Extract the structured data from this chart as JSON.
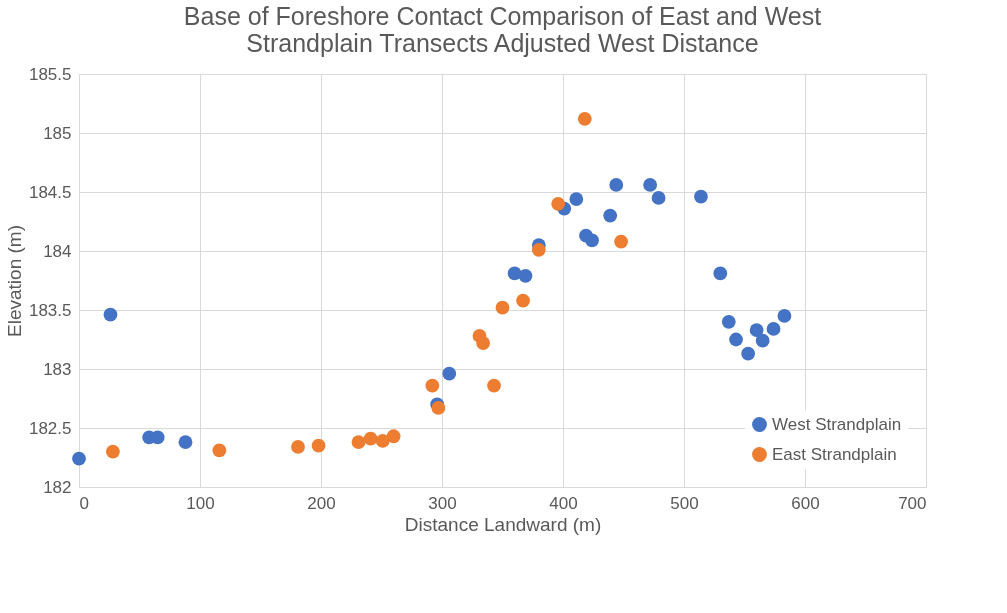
{
  "chart_data": {
    "type": "scatter",
    "title": [
      "Base of Foreshore Contact Comparison of East and West",
      "Strandplain Transects Adjusted West Distance"
    ],
    "xlabel": "Distance Landward (m)",
    "ylabel": "Elevation (m)",
    "xlim": [
      0,
      700
    ],
    "xticks": [
      0,
      100,
      200,
      300,
      400,
      500,
      600,
      700
    ],
    "ylim": [
      182,
      185.5
    ],
    "yticks": [
      182,
      {
        "value": 182.5,
        "label": "182.5"
      },
      183,
      {
        "value": 183.5,
        "label": "183.5"
      },
      184,
      {
        "value": 184.5,
        "label": "184.5"
      },
      185,
      {
        "value": 185.5,
        "label": "185.5"
      }
    ],
    "grid": true,
    "legend": "bottom right",
    "marker": "circle",
    "series": [
      {
        "name": "West Strandplain",
        "color": "#4472c4",
        "x": [
          0,
          26,
          58,
          65,
          88,
          296,
          306,
          360,
          369,
          380,
          401,
          411,
          419,
          424,
          439,
          444,
          472,
          479,
          514,
          530,
          537,
          543,
          553,
          560,
          565,
          574,
          583
        ],
        "values": [
          182.24,
          183.46,
          182.42,
          182.42,
          182.38,
          182.7,
          182.96,
          183.81,
          183.79,
          184.05,
          184.36,
          184.44,
          184.13,
          184.09,
          184.3,
          184.56,
          184.56,
          184.45,
          184.46,
          183.81,
          183.4,
          183.25,
          183.13,
          183.33,
          183.24,
          183.34,
          183.45
        ]
      },
      {
        "name": "East Strandplain",
        "color": "#ed7d31",
        "x": [
          28,
          116,
          181,
          198,
          231,
          241,
          251,
          260,
          292,
          297,
          331,
          334,
          343,
          350,
          367,
          380,
          396,
          418,
          448
        ],
        "values": [
          182.3,
          182.31,
          182.34,
          182.35,
          182.38,
          182.41,
          182.39,
          182.43,
          182.86,
          182.67,
          183.28,
          183.22,
          182.86,
          183.52,
          183.58,
          184.01,
          184.4,
          185.12,
          184.08
        ]
      }
    ]
  }
}
